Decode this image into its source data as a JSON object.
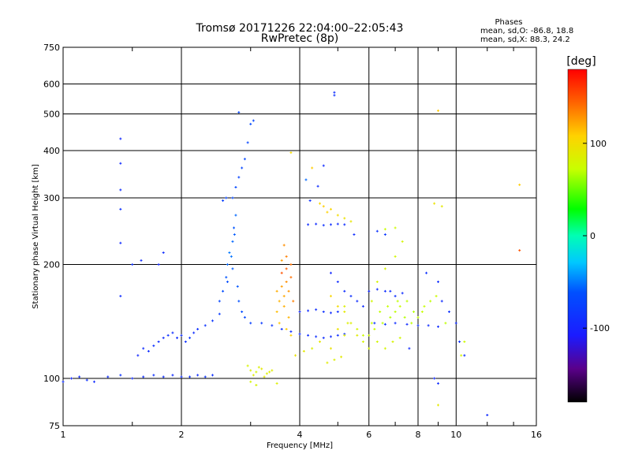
{
  "chart_data": {
    "type": "scatter",
    "title": "Tromsø 20171226 22:04:00–22:05:43",
    "subtitle": "RwPretec (8p)",
    "xlabel": "Frequency [MHz]",
    "ylabel": "Stationary phase Virtual Height [km]",
    "x_scale": "log",
    "y_scale": "log",
    "xlim": [
      1,
      16
    ],
    "ylim": [
      75,
      750
    ],
    "x_ticks": [
      1,
      2,
      4,
      6,
      8,
      10,
      16
    ],
    "x_tick_labels": [
      "1",
      "2",
      "4",
      "6",
      "8",
      "10",
      "16"
    ],
    "x_minor_ticks": [
      1.5,
      3,
      5,
      7,
      9,
      12,
      14
    ],
    "y_ticks": [
      75,
      100,
      200,
      300,
      400,
      500,
      600,
      750
    ],
    "y_tick_labels": [
      "75",
      "100",
      "200",
      "300",
      "400",
      "500",
      "600",
      "750"
    ],
    "grid": true,
    "phases": {
      "heading": "Phases",
      "line_o": "mean, sd,O:  -86.8, 18.8",
      "line_x": "mean, sd,X:  88.3, 24.2"
    },
    "colorbar": {
      "label": "[deg]",
      "min": -180,
      "max": 180,
      "ticks": [
        100,
        0,
        -100
      ],
      "tick_labels": [
        "100",
        "0",
        "-100"
      ]
    },
    "series": [
      {
        "points": [
          [
            1.0,
            98,
            -90
          ],
          [
            1.05,
            100,
            -95
          ],
          [
            1.1,
            101,
            -92
          ],
          [
            1.15,
            99,
            -88
          ],
          [
            1.2,
            98,
            -92
          ],
          [
            1.3,
            101,
            -90
          ],
          [
            1.4,
            102,
            -85
          ],
          [
            1.5,
            100,
            -92
          ],
          [
            1.6,
            101,
            -90
          ],
          [
            1.7,
            102,
            -88
          ],
          [
            1.8,
            101,
            -90
          ],
          [
            1.9,
            102,
            -92
          ],
          [
            2.0,
            101,
            -90
          ],
          [
            2.1,
            101,
            -88
          ],
          [
            2.2,
            102,
            -90
          ],
          [
            2.3,
            101,
            -85
          ],
          [
            2.4,
            102,
            -88
          ],
          [
            1.55,
            115,
            -95
          ],
          [
            1.6,
            120,
            -92
          ],
          [
            1.65,
            118,
            -90
          ],
          [
            1.7,
            122,
            -88
          ],
          [
            1.75,
            125,
            -90
          ],
          [
            1.8,
            128,
            -92
          ],
          [
            1.85,
            130,
            -88
          ],
          [
            1.9,
            132,
            -90
          ],
          [
            1.95,
            128,
            -92
          ],
          [
            2.0,
            130,
            -90
          ],
          [
            2.05,
            125,
            -88
          ],
          [
            2.1,
            128,
            -86
          ],
          [
            2.15,
            132,
            -90
          ],
          [
            2.2,
            135,
            -88
          ],
          [
            2.3,
            138,
            -85
          ],
          [
            2.4,
            142,
            -82
          ],
          [
            2.5,
            148,
            -78
          ],
          [
            2.5,
            160,
            -70
          ],
          [
            2.55,
            170,
            -65
          ],
          [
            2.6,
            185,
            -60
          ],
          [
            2.62,
            200,
            -55
          ],
          [
            2.65,
            215,
            -50
          ],
          [
            2.7,
            230,
            -55
          ],
          [
            2.72,
            250,
            -60
          ],
          [
            2.75,
            270,
            -55
          ],
          [
            2.62,
            180,
            -65
          ],
          [
            2.7,
            195,
            -58
          ],
          [
            2.78,
            175,
            -60
          ],
          [
            2.8,
            160,
            -62
          ],
          [
            2.85,
            150,
            -65
          ],
          [
            2.9,
            145,
            -68
          ],
          [
            2.68,
            210,
            -52
          ],
          [
            2.73,
            240,
            -58
          ],
          [
            2.7,
            300,
            -70
          ],
          [
            2.75,
            320,
            -68
          ],
          [
            2.8,
            340,
            -72
          ],
          [
            2.85,
            360,
            -70
          ],
          [
            2.9,
            380,
            -68
          ],
          [
            2.95,
            420,
            -70
          ],
          [
            3.0,
            470,
            -68
          ],
          [
            3.05,
            480,
            -70
          ],
          [
            2.8,
            505,
            -72
          ],
          [
            2.55,
            295,
            -75
          ],
          [
            2.6,
            300,
            -72
          ],
          [
            3.0,
            140,
            -75
          ],
          [
            3.2,
            140,
            -80
          ],
          [
            3.4,
            138,
            -85
          ],
          [
            3.6,
            135,
            -88
          ],
          [
            3.8,
            133,
            -90
          ],
          [
            4.0,
            131,
            -92
          ],
          [
            4.2,
            130,
            -90
          ],
          [
            4.4,
            129,
            -88
          ],
          [
            4.6,
            128,
            -90
          ],
          [
            4.8,
            129,
            -92
          ],
          [
            5.0,
            130,
            -90
          ],
          [
            5.2,
            131,
            -88
          ],
          [
            4.0,
            150,
            -95
          ],
          [
            4.2,
            151,
            -92
          ],
          [
            4.4,
            152,
            -90
          ],
          [
            4.6,
            150,
            -88
          ],
          [
            4.8,
            149,
            -92
          ],
          [
            5.0,
            150,
            -90
          ],
          [
            4.2,
            255,
            -90
          ],
          [
            4.4,
            256,
            -92
          ],
          [
            4.6,
            254,
            -88
          ],
          [
            4.8,
            255,
            -90
          ],
          [
            5.0,
            256,
            -92
          ],
          [
            5.2,
            255,
            -90
          ],
          [
            4.8,
            190,
            -95
          ],
          [
            5.0,
            180,
            -92
          ],
          [
            5.2,
            170,
            -90
          ],
          [
            5.4,
            165,
            -88
          ],
          [
            5.6,
            160,
            -90
          ],
          [
            5.8,
            155,
            -92
          ],
          [
            6.0,
            170,
            -95
          ],
          [
            6.3,
            172,
            -92
          ],
          [
            6.6,
            170,
            -90
          ],
          [
            7.0,
            165,
            -88
          ],
          [
            7.3,
            168,
            -90
          ],
          [
            6.2,
            140,
            -85
          ],
          [
            6.6,
            139,
            -88
          ],
          [
            7.0,
            140,
            -90
          ],
          [
            7.5,
            139,
            -92
          ],
          [
            8.0,
            138,
            -88
          ],
          [
            8.5,
            138,
            -90
          ],
          [
            9.0,
            137,
            -92
          ],
          [
            1.4,
            430,
            -95
          ],
          [
            1.4,
            370,
            -92
          ],
          [
            1.4,
            315,
            -90
          ],
          [
            1.4,
            280,
            -88
          ],
          [
            1.4,
            228,
            -92
          ],
          [
            1.4,
            165,
            -90
          ],
          [
            1.5,
            200,
            -88
          ],
          [
            1.58,
            205,
            -92
          ],
          [
            1.8,
            215,
            -90
          ],
          [
            1.75,
            200,
            -95
          ],
          [
            4.9,
            570,
            -90
          ],
          [
            4.9,
            560,
            -88
          ],
          [
            4.6,
            365,
            -92
          ],
          [
            4.45,
            322,
            -90
          ],
          [
            4.15,
            335,
            -55
          ],
          [
            4.25,
            295,
            -88
          ],
          [
            5.5,
            240,
            -90
          ],
          [
            6.3,
            245,
            -85
          ],
          [
            6.6,
            240,
            -82
          ],
          [
            6.8,
            170,
            -90
          ],
          [
            8.4,
            190,
            -88
          ],
          [
            9.0,
            180,
            -90
          ],
          [
            9.2,
            160,
            -92
          ],
          [
            9.6,
            150,
            -88
          ],
          [
            10.0,
            140,
            -90
          ],
          [
            10.2,
            125,
            -88
          ],
          [
            12.0,
            80,
            -92
          ],
          [
            8.8,
            100,
            -95
          ],
          [
            9.0,
            97,
            -90
          ],
          [
            10.5,
            115,
            -88
          ],
          [
            7.6,
            120,
            -92
          ]
        ]
      },
      {
        "points": [
          [
            3.0,
            105,
            85
          ],
          [
            3.1,
            104,
            80
          ],
          [
            3.2,
            106,
            90
          ],
          [
            3.3,
            103,
            85
          ],
          [
            3.4,
            105,
            88
          ],
          [
            2.95,
            108,
            82
          ],
          [
            3.05,
            102,
            86
          ],
          [
            3.15,
            107,
            84
          ],
          [
            3.25,
            101,
            88
          ],
          [
            3.35,
            104,
            86
          ],
          [
            3.0,
            98,
            80
          ],
          [
            3.1,
            96,
            82
          ],
          [
            3.5,
            97,
            85
          ],
          [
            3.5,
            170,
            120
          ],
          [
            3.6,
            175,
            125
          ],
          [
            3.7,
            180,
            130
          ],
          [
            3.8,
            185,
            140
          ],
          [
            3.55,
            160,
            118
          ],
          [
            3.65,
            165,
            122
          ],
          [
            3.75,
            170,
            128
          ],
          [
            3.85,
            160,
            135
          ],
          [
            3.6,
            190,
            150
          ],
          [
            3.7,
            195,
            145
          ],
          [
            3.8,
            200,
            140
          ],
          [
            3.6,
            205,
            125
          ],
          [
            3.7,
            210,
            135
          ],
          [
            3.5,
            150,
            115
          ],
          [
            3.65,
            155,
            120
          ],
          [
            3.75,
            145,
            118
          ],
          [
            3.55,
            140,
            112
          ],
          [
            3.7,
            135,
            110
          ],
          [
            3.8,
            130,
            108
          ],
          [
            3.65,
            225,
            130
          ],
          [
            3.9,
            115,
            95
          ],
          [
            4.1,
            118,
            90
          ],
          [
            4.3,
            120,
            85
          ],
          [
            4.5,
            125,
            92
          ],
          [
            4.7,
            110,
            88
          ],
          [
            4.9,
            112,
            85
          ],
          [
            5.1,
            114,
            90
          ],
          [
            4.6,
            285,
            110
          ],
          [
            4.8,
            280,
            105
          ],
          [
            5.0,
            270,
            100
          ],
          [
            5.2,
            265,
            95
          ],
          [
            5.4,
            260,
            92
          ],
          [
            4.7,
            275,
            108
          ],
          [
            4.8,
            165,
            105
          ],
          [
            5.0,
            155,
            100
          ],
          [
            5.2,
            150,
            90
          ],
          [
            5.4,
            140,
            85
          ],
          [
            5.6,
            135,
            80
          ],
          [
            5.8,
            130,
            75
          ],
          [
            5.0,
            135,
            95
          ],
          [
            5.2,
            130,
            88
          ],
          [
            6.0,
            130,
            75
          ],
          [
            6.2,
            135,
            72
          ],
          [
            6.5,
            140,
            70
          ],
          [
            6.8,
            145,
            68
          ],
          [
            7.0,
            150,
            70
          ],
          [
            7.2,
            155,
            72
          ],
          [
            7.5,
            160,
            70
          ],
          [
            7.8,
            150,
            68
          ],
          [
            8.0,
            145,
            70
          ],
          [
            8.2,
            150,
            72
          ],
          [
            6.4,
            150,
            70
          ],
          [
            6.7,
            155,
            72
          ],
          [
            7.1,
            160,
            70
          ],
          [
            7.4,
            145,
            68
          ],
          [
            7.7,
            140,
            70
          ],
          [
            8.3,
            155,
            72
          ],
          [
            8.6,
            160,
            70
          ],
          [
            6.1,
            160,
            78
          ],
          [
            6.3,
            180,
            80
          ],
          [
            6.6,
            195,
            82
          ],
          [
            7.0,
            210,
            78
          ],
          [
            7.3,
            230,
            80
          ],
          [
            7.0,
            250,
            75
          ],
          [
            6.6,
            248,
            72
          ],
          [
            5.6,
            130,
            88
          ],
          [
            5.8,
            125,
            82
          ],
          [
            6.0,
            120,
            80
          ],
          [
            6.3,
            125,
            78
          ],
          [
            6.6,
            120,
            80
          ],
          [
            6.9,
            125,
            82
          ],
          [
            7.2,
            128,
            78
          ],
          [
            3.8,
            395,
            100
          ],
          [
            4.3,
            360,
            110
          ],
          [
            4.5,
            290,
            105
          ],
          [
            4.8,
            120,
            95
          ],
          [
            5.2,
            155,
            85
          ],
          [
            8.8,
            290,
            95
          ],
          [
            9.2,
            285,
            90
          ],
          [
            9.0,
            510,
            110
          ],
          [
            9.0,
            85,
            90
          ],
          [
            14.5,
            325,
            110
          ],
          [
            14.5,
            218,
            150
          ],
          [
            10.5,
            125,
            75
          ],
          [
            10.3,
            115,
            80
          ],
          [
            8.9,
            165,
            75
          ],
          [
            9.4,
            140,
            70
          ],
          [
            6.1,
            140,
            72
          ],
          [
            5.3,
            140,
            85
          ]
        ]
      }
    ]
  }
}
